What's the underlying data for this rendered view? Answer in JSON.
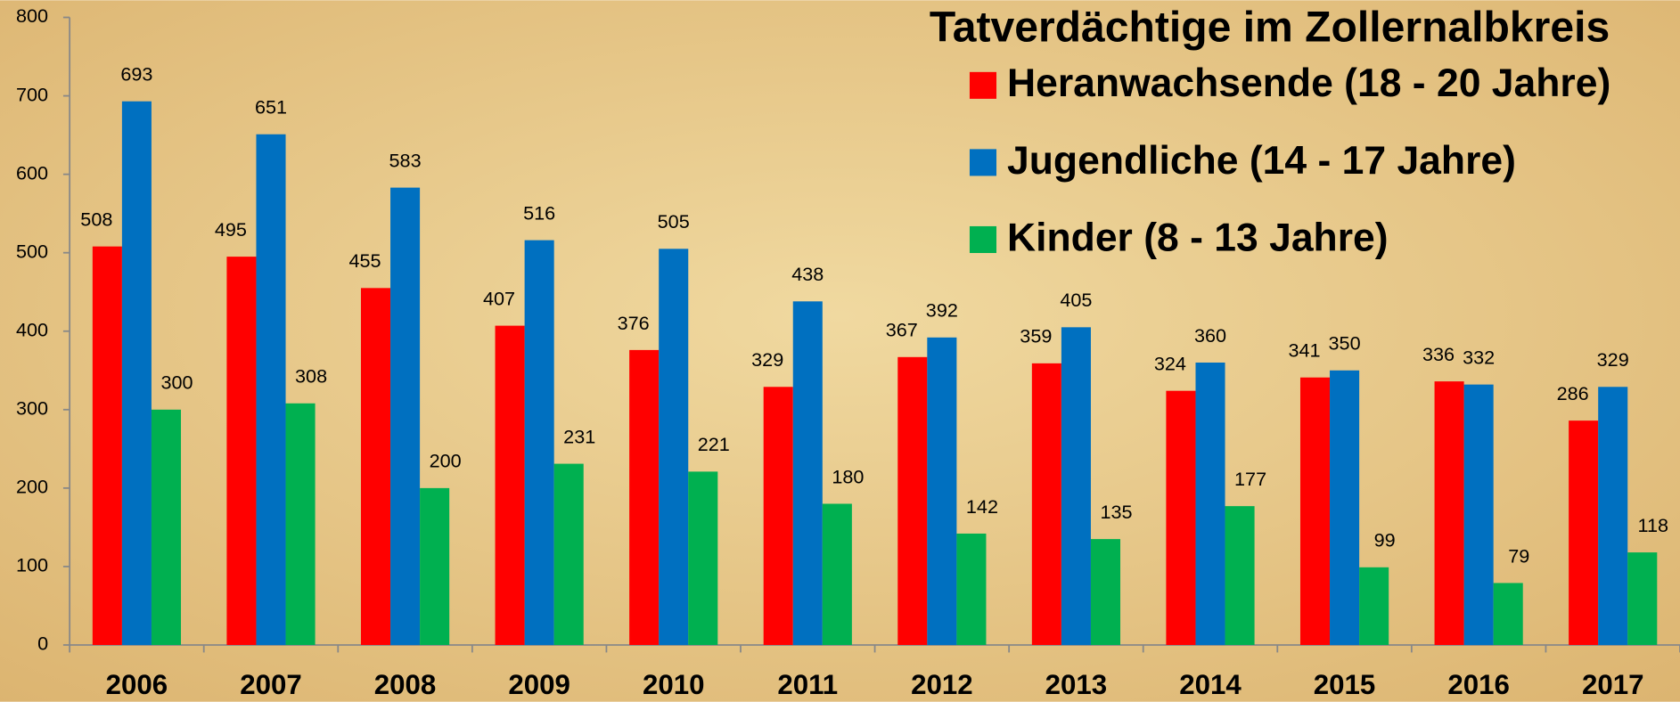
{
  "chart_data": {
    "type": "bar",
    "title": "Tatverdächtige im Zollernalbkreis",
    "categories": [
      "2006",
      "2007",
      "2008",
      "2009",
      "2010",
      "2011",
      "2012",
      "2013",
      "2014",
      "2015",
      "2016",
      "2017"
    ],
    "series": [
      {
        "name": "Heranwachsende (18 - 20 Jahre)",
        "color": "#ff0000",
        "values": [
          508,
          495,
          455,
          407,
          376,
          329,
          367,
          359,
          324,
          341,
          336,
          286
        ]
      },
      {
        "name": "Jugendliche (14 - 17 Jahre)",
        "color": "#0070c0",
        "values": [
          693,
          651,
          583,
          516,
          505,
          438,
          392,
          405,
          360,
          350,
          332,
          329
        ]
      },
      {
        "name": "Kinder (8 - 13 Jahre)",
        "color": "#00b050",
        "values": [
          300,
          308,
          200,
          231,
          221,
          180,
          142,
          135,
          177,
          99,
          79,
          118
        ]
      }
    ],
    "ylim": [
      0,
      800
    ],
    "yticks": [
      0,
      100,
      200,
      300,
      400,
      500,
      600,
      700,
      800
    ],
    "grid": false,
    "legend": "top-right"
  }
}
